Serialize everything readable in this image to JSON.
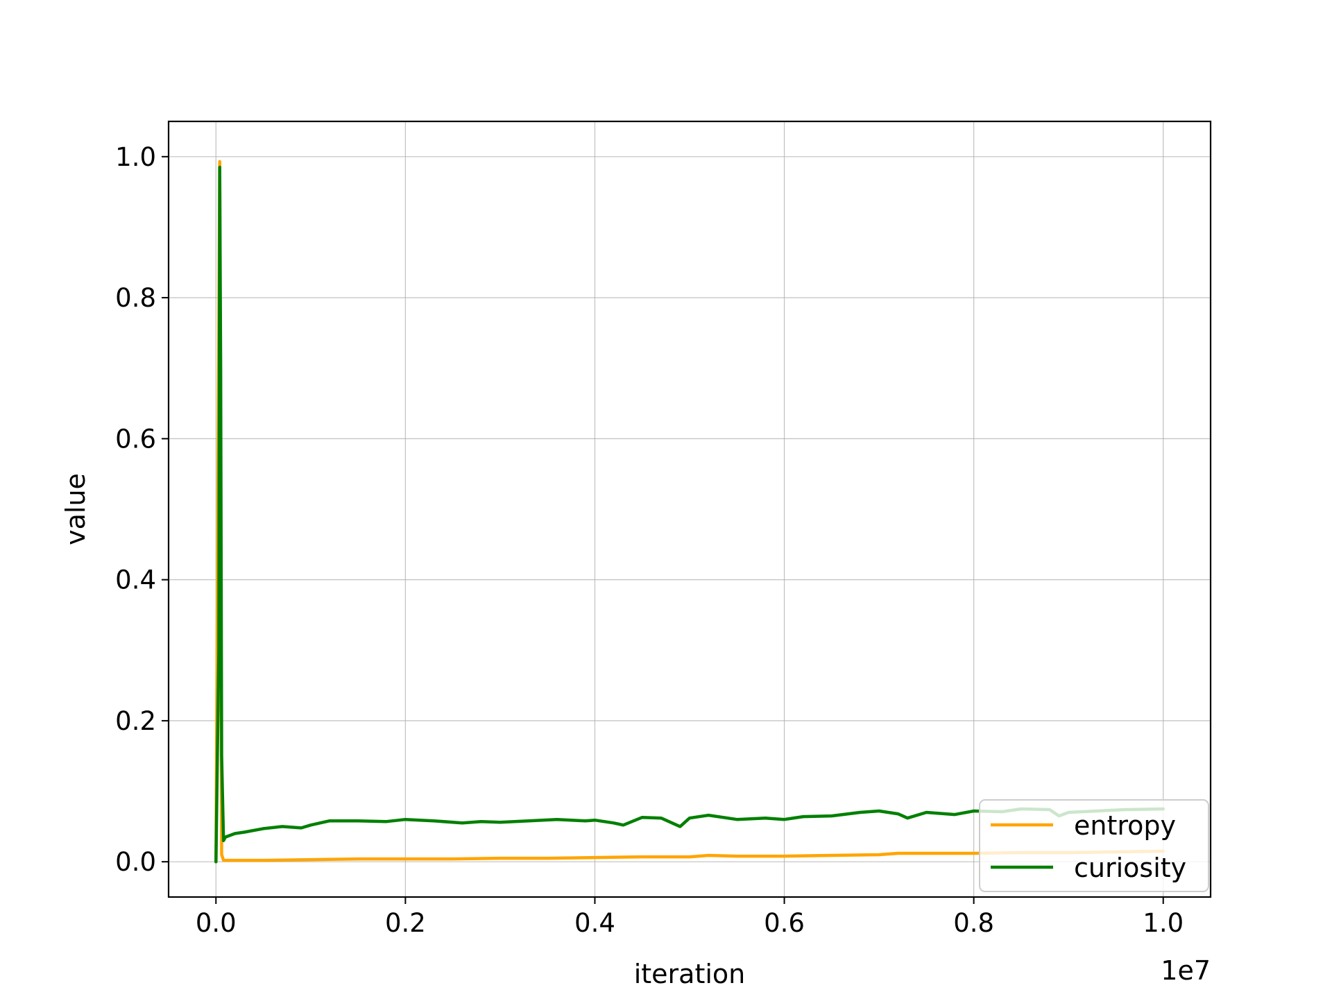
{
  "chart_data": {
    "type": "line",
    "title": "",
    "xlabel": "iteration",
    "ylabel": "value",
    "x_offset_label": "1e7",
    "xlim": [
      -0.05,
      1.05
    ],
    "ylim": [
      -0.05,
      1.05
    ],
    "x_ticks": [
      0.0,
      0.2,
      0.4,
      0.6,
      0.8,
      1.0
    ],
    "x_tick_labels": [
      "0.0",
      "0.2",
      "0.4",
      "0.6",
      "0.8",
      "1.0"
    ],
    "y_ticks": [
      0.0,
      0.2,
      0.4,
      0.6,
      0.8,
      1.0
    ],
    "y_tick_labels": [
      "0.0",
      "0.2",
      "0.4",
      "0.6",
      "0.8",
      "1.0"
    ],
    "grid": true,
    "legend_position": "lower-right",
    "series": [
      {
        "name": "entropy",
        "color": "#ffa500",
        "x": [
          0.0,
          0.004,
          0.005,
          0.006,
          0.008,
          0.01,
          0.05,
          0.1,
          0.15,
          0.2,
          0.25,
          0.3,
          0.35,
          0.4,
          0.45,
          0.5,
          0.52,
          0.55,
          0.6,
          0.65,
          0.7,
          0.72,
          0.75,
          0.8,
          0.85,
          0.9,
          0.95,
          1.0
        ],
        "y": [
          0.0,
          0.993,
          0.4,
          0.01,
          0.002,
          0.002,
          0.002,
          0.003,
          0.004,
          0.004,
          0.004,
          0.005,
          0.005,
          0.006,
          0.007,
          0.007,
          0.009,
          0.008,
          0.008,
          0.009,
          0.01,
          0.012,
          0.012,
          0.012,
          0.013,
          0.013,
          0.014,
          0.015
        ]
      },
      {
        "name": "curiosity",
        "color": "#008000",
        "x": [
          0.0,
          0.003,
          0.004,
          0.005,
          0.006,
          0.008,
          0.01,
          0.02,
          0.03,
          0.05,
          0.07,
          0.09,
          0.1,
          0.12,
          0.15,
          0.18,
          0.2,
          0.23,
          0.26,
          0.28,
          0.3,
          0.33,
          0.36,
          0.39,
          0.4,
          0.42,
          0.43,
          0.45,
          0.47,
          0.49,
          0.5,
          0.52,
          0.55,
          0.58,
          0.6,
          0.62,
          0.65,
          0.68,
          0.7,
          0.72,
          0.73,
          0.75,
          0.78,
          0.8,
          0.83,
          0.85,
          0.88,
          0.89,
          0.9,
          0.93,
          0.96,
          1.0
        ],
        "y": [
          0.0,
          0.3,
          0.985,
          0.7,
          0.15,
          0.03,
          0.035,
          0.04,
          0.042,
          0.047,
          0.05,
          0.048,
          0.052,
          0.058,
          0.058,
          0.057,
          0.06,
          0.058,
          0.055,
          0.057,
          0.056,
          0.058,
          0.06,
          0.058,
          0.059,
          0.055,
          0.052,
          0.063,
          0.062,
          0.05,
          0.062,
          0.066,
          0.06,
          0.062,
          0.06,
          0.064,
          0.065,
          0.07,
          0.072,
          0.068,
          0.062,
          0.07,
          0.067,
          0.072,
          0.071,
          0.075,
          0.074,
          0.065,
          0.07,
          0.072,
          0.074,
          0.075
        ]
      }
    ]
  }
}
